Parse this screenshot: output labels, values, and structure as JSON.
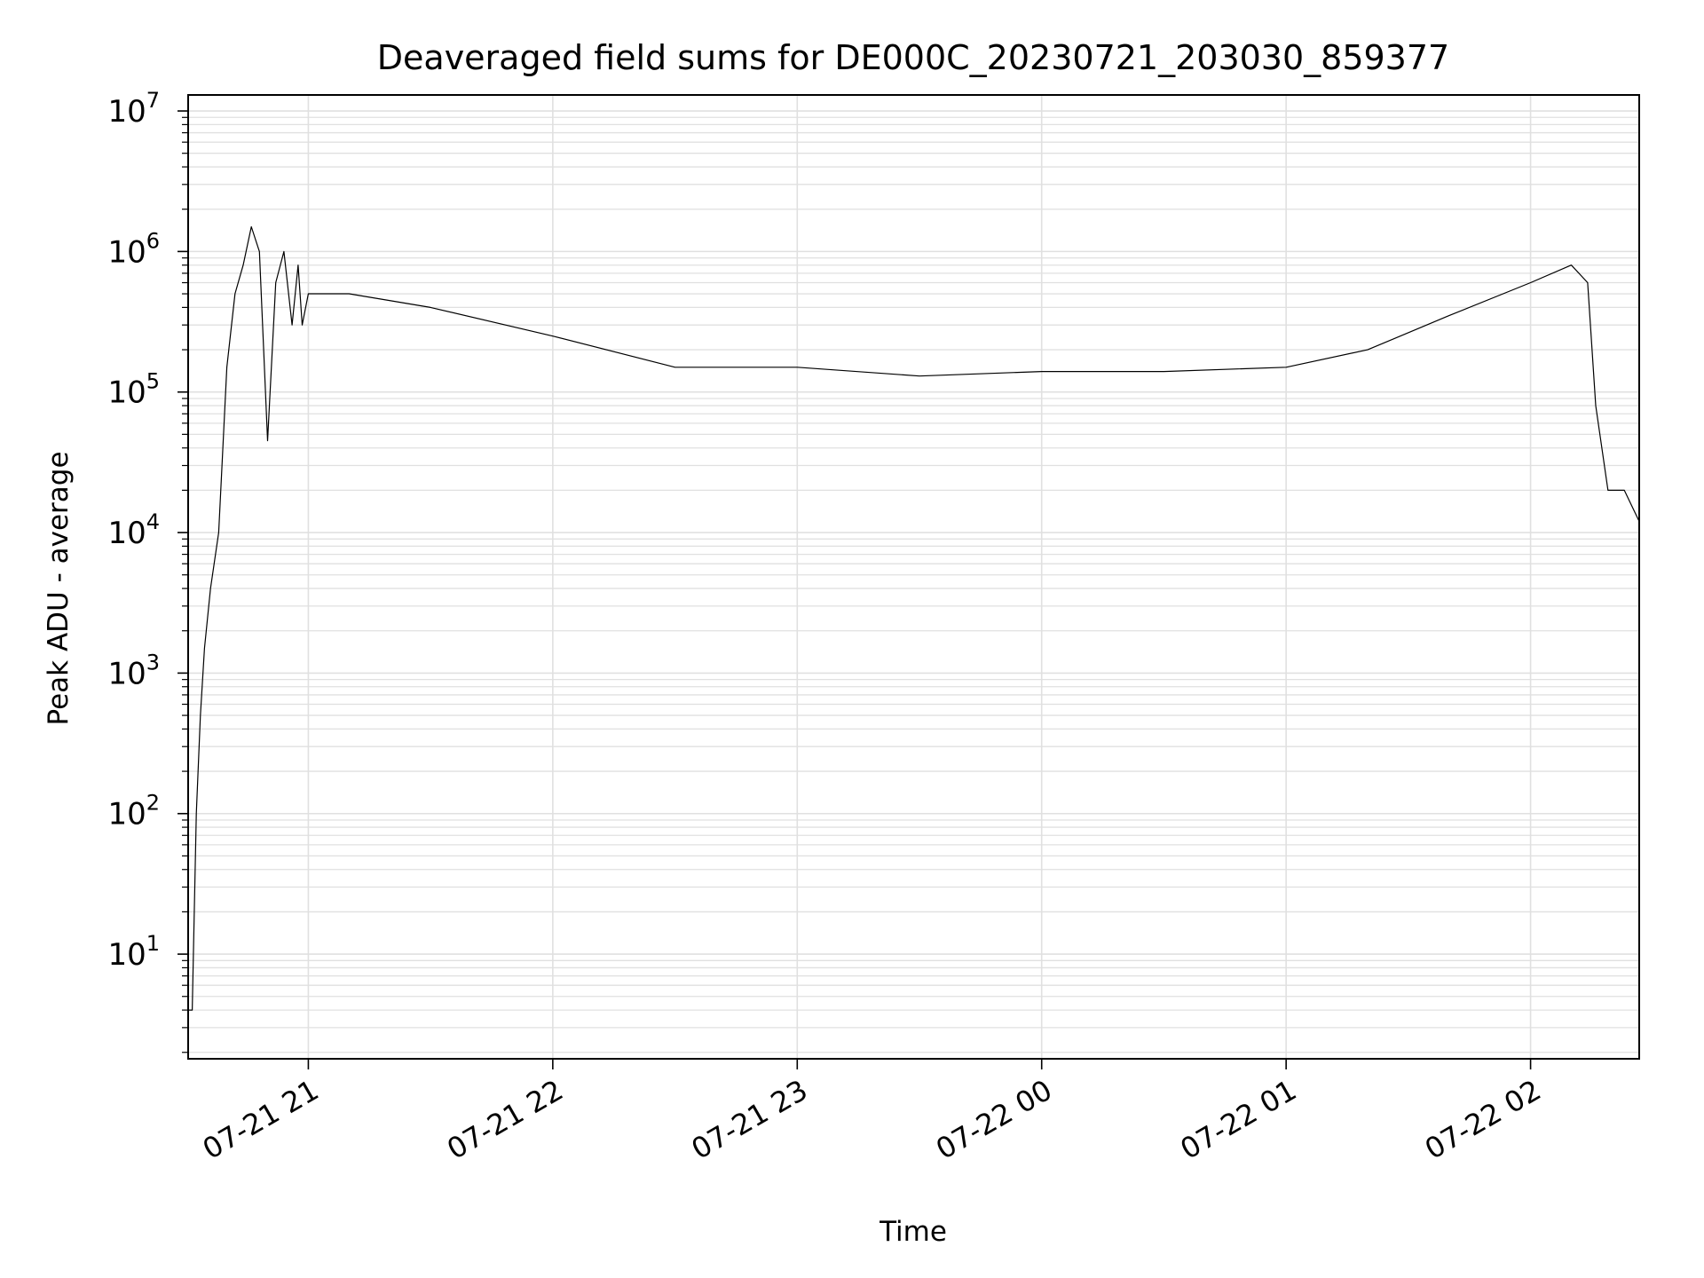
{
  "chart_data": {
    "type": "line",
    "title": "Deaveraged field sums for DE000C_20230721_203030_859377",
    "xlabel": "Time",
    "ylabel": "Peak ADU - average",
    "yscale": "log",
    "ylim": [
      1.8,
      13000000
    ],
    "xlim": [
      "2023-07-21T20:30:30",
      "2023-07-22T02:26:40"
    ],
    "grid": true,
    "line_color": "#000000",
    "grid_color": "#e0e0e0",
    "x_ticks": [
      {
        "label": "07-21 21",
        "t": "2023-07-21T21:00:00"
      },
      {
        "label": "07-21 22",
        "t": "2023-07-21T22:00:00"
      },
      {
        "label": "07-21 23",
        "t": "2023-07-21T23:00:00"
      },
      {
        "label": "07-22 00",
        "t": "2023-07-22T00:00:00"
      },
      {
        "label": "07-22 01",
        "t": "2023-07-22T01:00:00"
      },
      {
        "label": "07-22 02",
        "t": "2023-07-22T02:00:00"
      }
    ],
    "y_ticks": [
      {
        "base": "10",
        "exp": "1",
        "value": 10
      },
      {
        "base": "10",
        "exp": "2",
        "value": 100
      },
      {
        "base": "10",
        "exp": "3",
        "value": 1000
      },
      {
        "base": "10",
        "exp": "4",
        "value": 10000
      },
      {
        "base": "10",
        "exp": "5",
        "value": 100000
      },
      {
        "base": "10",
        "exp": "6",
        "value": 1000000
      },
      {
        "base": "10",
        "exp": "7",
        "value": 10000000
      }
    ],
    "series": [
      {
        "x": [
          "2023-07-21T20:30:30",
          "2023-07-21T20:31:30",
          "2023-07-21T20:32:30",
          "2023-07-21T20:33:30",
          "2023-07-21T20:34:30",
          "2023-07-21T20:36:00",
          "2023-07-21T20:38:00",
          "2023-07-21T20:40:00",
          "2023-07-21T20:42:00",
          "2023-07-21T20:44:00",
          "2023-07-21T20:46:00",
          "2023-07-21T20:48:00",
          "2023-07-21T20:50:00",
          "2023-07-21T20:52:00",
          "2023-07-21T20:54:00",
          "2023-07-21T20:56:00",
          "2023-07-21T20:57:30",
          "2023-07-21T20:58:30",
          "2023-07-21T21:00:00",
          "2023-07-21T21:10:00",
          "2023-07-21T21:30:00",
          "2023-07-21T22:00:00",
          "2023-07-21T22:30:00",
          "2023-07-21T23:00:00",
          "2023-07-21T23:30:00",
          "2023-07-22T00:00:00",
          "2023-07-22T00:30:00",
          "2023-07-22T01:00:00",
          "2023-07-22T01:20:00",
          "2023-07-22T01:40:00",
          "2023-07-22T02:00:00",
          "2023-07-22T02:10:00",
          "2023-07-22T02:14:00",
          "2023-07-22T02:16:00",
          "2023-07-22T02:19:00",
          "2023-07-22T02:23:00",
          "2023-07-22T02:26:40"
        ],
        "y": [
          4,
          4,
          100,
          500,
          1500,
          4000,
          10000,
          150000,
          500000,
          800000,
          1500000,
          1000000,
          45000,
          600000,
          1000000,
          300000,
          800000,
          300000,
          500000,
          500000,
          400000,
          250000,
          150000,
          150000,
          130000,
          140000,
          140000,
          150000,
          200000,
          350000,
          600000,
          800000,
          600000,
          80000,
          20000,
          20000,
          12000
        ]
      }
    ]
  }
}
